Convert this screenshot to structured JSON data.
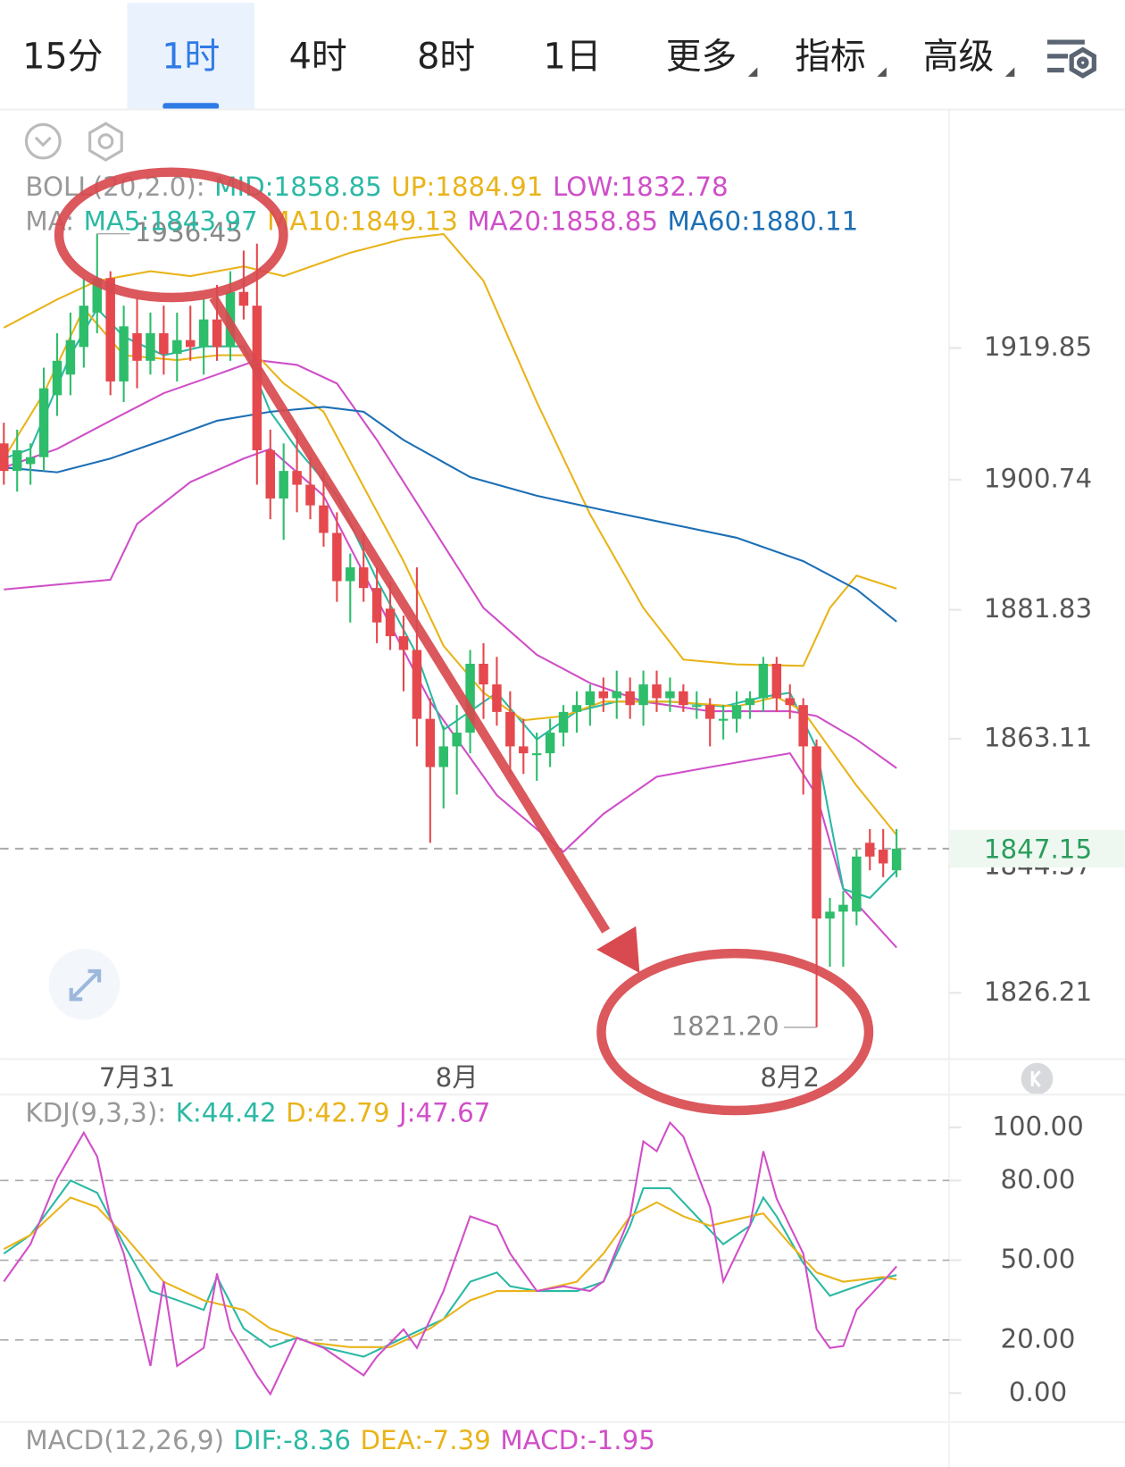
{
  "tabs": [
    "15分",
    "1时",
    "4时",
    "8时",
    "1日",
    "更多",
    "指标",
    "高级"
  ],
  "active_tab": 1,
  "chart_data": [
    {
      "type": "candlestick",
      "up_color": "#2ebd6b",
      "down_color": "#e5484d",
      "categories": [
        null,
        null,
        null,
        null,
        null,
        null,
        null,
        null,
        null,
        null,
        "7月31",
        null,
        null,
        null,
        null,
        null,
        null,
        null,
        null,
        null,
        null,
        null,
        null,
        null,
        null,
        null,
        null,
        null,
        null,
        null,
        null,
        null,
        null,
        null,
        "8月",
        null,
        null,
        null,
        null,
        null,
        null,
        null,
        null,
        null,
        null,
        null,
        null,
        null,
        null,
        null,
        null,
        null,
        null,
        null,
        null,
        null,
        null,
        null,
        null,
        "8月2",
        null,
        null,
        null,
        null,
        null,
        null,
        null,
        null
      ],
      "ohlc": [
        [
          1906,
          1909,
          1900,
          1902
        ],
        [
          1902,
          1908,
          1899,
          1905
        ],
        [
          1903,
          1906,
          1900,
          1904
        ],
        [
          1904,
          1917,
          1902,
          1914
        ],
        [
          1913,
          1922,
          1910,
          1918
        ],
        [
          1916,
          1925,
          1913,
          1921
        ],
        [
          1920,
          1930,
          1917,
          1926
        ],
        [
          1925,
          1936.45,
          1922,
          1930
        ],
        [
          1930,
          1931,
          1913,
          1915
        ],
        [
          1915,
          1926,
          1912,
          1923
        ],
        [
          1922,
          1927,
          1914,
          1918
        ],
        [
          1918,
          1925,
          1916,
          1922
        ],
        [
          1922,
          1926,
          1916,
          1919
        ],
        [
          1919,
          1925,
          1915,
          1921
        ],
        [
          1921,
          1926,
          1918,
          1920
        ],
        [
          1920,
          1927,
          1916,
          1924
        ],
        [
          1924,
          1929,
          1918,
          1920
        ],
        [
          1920,
          1931,
          1918,
          1928
        ],
        [
          1928,
          1934,
          1924,
          1926
        ],
        [
          1926,
          1935,
          1900,
          1905
        ],
        [
          1905,
          1908,
          1895,
          1898
        ],
        [
          1898,
          1906,
          1892,
          1902
        ],
        [
          1902,
          1908,
          1896,
          1900
        ],
        [
          1900,
          1904,
          1895,
          1897
        ],
        [
          1897,
          1902,
          1891,
          1893
        ],
        [
          1893,
          1896,
          1883,
          1886
        ],
        [
          1886,
          1890,
          1880,
          1888
        ],
        [
          1888,
          1893,
          1883,
          1885
        ],
        [
          1885,
          1888,
          1877,
          1880
        ],
        [
          1882,
          1886,
          1876,
          1878
        ],
        [
          1878,
          1881,
          1870,
          1876
        ],
        [
          1876,
          1888,
          1862,
          1866
        ],
        [
          1866,
          1869,
          1848,
          1859
        ],
        [
          1859,
          1865,
          1853,
          1862
        ],
        [
          1862,
          1868,
          1855,
          1864
        ],
        [
          1864,
          1876,
          1861,
          1874
        ],
        [
          1874,
          1877,
          1866,
          1871
        ],
        [
          1871,
          1875,
          1865,
          1867
        ],
        [
          1867,
          1870,
          1858,
          1862
        ],
        [
          1862,
          1866,
          1858,
          1861
        ],
        [
          1861,
          1864,
          1857,
          1861
        ],
        [
          1861,
          1866,
          1859,
          1864
        ],
        [
          1864,
          1868,
          1862,
          1867
        ],
        [
          1867,
          1870,
          1864,
          1868
        ],
        [
          1868,
          1871,
          1865,
          1870
        ],
        [
          1870,
          1872,
          1867,
          1869
        ],
        [
          1869,
          1873,
          1866,
          1870
        ],
        [
          1870,
          1872,
          1866,
          1868
        ],
        [
          1868,
          1873,
          1865,
          1871
        ],
        [
          1871,
          1873,
          1867,
          1869
        ],
        [
          1869,
          1872,
          1867,
          1870
        ],
        [
          1870,
          1871,
          1867,
          1868
        ],
        [
          1868,
          1870,
          1866,
          1868
        ],
        [
          1868,
          1869,
          1862,
          1866
        ],
        [
          1866,
          1868,
          1863,
          1866
        ],
        [
          1866,
          1870,
          1864,
          1868
        ],
        [
          1868,
          1870,
          1866,
          1869
        ],
        [
          1869,
          1875,
          1867,
          1874
        ],
        [
          1874,
          1875,
          1867,
          1869
        ],
        [
          1869,
          1871,
          1866,
          1868
        ],
        [
          1868,
          1869,
          1855,
          1862
        ],
        [
          1862,
          1863,
          1821.2,
          1837
        ],
        [
          1837,
          1840,
          1830,
          1838
        ],
        [
          1838,
          1841,
          1830,
          1839
        ],
        [
          1838,
          1847,
          1836,
          1846
        ],
        [
          1848,
          1850,
          1844,
          1846
        ],
        [
          1847,
          1850,
          1843,
          1845
        ],
        [
          1844,
          1850,
          1843,
          1847.15
        ]
      ],
      "boll": {
        "label": "BOLL(20,2.0):",
        "series": [
          {
            "name": "MID:1858.85",
            "color": "#2bb9a4",
            "line_color": "#cf4fc8",
            "x": [
              0,
              4,
              8,
              12,
              16,
              19,
              22,
              25,
              28,
              32,
              36,
              40,
              44,
              48,
              53,
              59,
              61,
              64,
              67
            ],
            "values": [
              1902.5,
              1905.2,
              1909.3,
              1913.3,
              1916.0,
              1918.1,
              1917.4,
              1914.7,
              1906.5,
              1894.3,
              1882.1,
              1875.3,
              1871.2,
              1868.5,
              1867.1,
              1867.1,
              1866.4,
              1863.0,
              1858.85
            ]
          },
          {
            "name": "UP:1884.91",
            "color": "#e9b41a",
            "x": [
              0,
              4,
              7,
              11,
              14,
              18,
              21,
              26,
              30,
              33,
              36,
              40,
              44,
              48,
              51,
              55,
              60,
              62,
              64,
              67
            ],
            "values": [
              1922.8,
              1926.9,
              1929.6,
              1931.0,
              1930.3,
              1931.7,
              1930.3,
              1933.7,
              1935.7,
              1936.4,
              1929.6,
              1912.0,
              1895.7,
              1882.1,
              1874.6,
              1873.9,
              1873.7,
              1882.1,
              1886.8,
              1884.91
            ]
          },
          {
            "name": "LOW:1832.78",
            "color": "#cf4fc8",
            "x": [
              0,
              8,
              10,
              14,
              18,
              20,
              24,
              28,
              32,
              37,
              42,
              45,
              49,
              53,
              59,
              61,
              63,
              67
            ],
            "values": [
              1884.8,
              1886.2,
              1894.3,
              1900.4,
              1903.8,
              1905.2,
              1898.4,
              1883.4,
              1868.5,
              1854.9,
              1846.7,
              1852.2,
              1857.6,
              1859.0,
              1861.0,
              1854.9,
              1841.3,
              1832.78
            ]
          }
        ]
      },
      "ma": {
        "label": "MA:",
        "series": [
          {
            "name": "MA5:1843.97",
            "color": "#2bb9a4",
            "x": [
              0,
              2,
              5,
              7,
              9,
              12,
              15,
              18,
              20,
              22,
              25,
              28,
              31,
              33,
              35,
              37,
              40,
              43,
              46,
              50,
              54,
              57,
              59,
              61,
              63,
              65,
              67
            ],
            "values": [
              1903.8,
              1905.2,
              1918.8,
              1925.6,
              1921.5,
              1918.8,
              1920.1,
              1920.1,
              1910.6,
              1905.2,
              1898.4,
              1886.2,
              1875.3,
              1864.4,
              1867.1,
              1869.8,
              1863.0,
              1867.1,
              1868.5,
              1868.5,
              1867.8,
              1869.2,
              1869.8,
              1861.7,
              1841.3,
              1840.0,
              1843.97
            ]
          },
          {
            "name": "MA10:1849.13",
            "color": "#e9b41a",
            "x": [
              0,
              3,
              6,
              9,
              13,
              16,
              19,
              21,
              24,
              27,
              30,
              33,
              36,
              39,
              42,
              45,
              50,
              55,
              58,
              60,
              62,
              64,
              67
            ],
            "values": [
              1903.8,
              1913.3,
              1925.6,
              1918.8,
              1918.1,
              1918.8,
              1918.8,
              1914.7,
              1910.6,
              1899.7,
              1888.9,
              1876.6,
              1869.8,
              1865.8,
              1866.4,
              1868.5,
              1868.5,
              1867.8,
              1869.2,
              1867.1,
              1861.7,
              1856.3,
              1849.13
            ]
          },
          {
            "name": "MA20:1858.85",
            "color": "#cf4fc8",
            "x": [],
            "values": []
          },
          {
            "name": "MA60:1880.11",
            "color": "#1d6fb5",
            "x": [
              0,
              4,
              8,
              12,
              16,
              20,
              24,
              27,
              30,
              35,
              40,
              45,
              50,
              55,
              60,
              64,
              67
            ],
            "values": [
              1902.5,
              1901.8,
              1903.8,
              1906.5,
              1909.3,
              1910.6,
              1911.3,
              1910.6,
              1906.5,
              1901.1,
              1898.4,
              1896.3,
              1894.3,
              1892.3,
              1888.9,
              1884.8,
              1880.11
            ]
          }
        ]
      },
      "ylim": [
        1816.86,
        1954.09
      ],
      "yticks": [
        1919.85,
        1900.74,
        1881.83,
        1863.11,
        1844.57,
        1826.21
      ],
      "price_marks": [
        {
          "index": 7,
          "value": 1936.45,
          "label": "1936.45"
        },
        {
          "index": 61,
          "value": 1821.2,
          "label": "1821.20"
        }
      ],
      "last_price": {
        "value": 1847.15,
        "label": "1847.15"
      }
    },
    {
      "type": "line",
      "label": "KDJ(9,3,3):",
      "series": [
        {
          "name": "K:44.42",
          "color": "#2bb9a4",
          "x": [
            0,
            2,
            5,
            7,
            9,
            11,
            13,
            15,
            16,
            18,
            20,
            22,
            24,
            27,
            30,
            33,
            35,
            37,
            38,
            40,
            43,
            45,
            47,
            48,
            50,
            52,
            54,
            56,
            57,
            58,
            60,
            62,
            63,
            65,
            67
          ],
          "values": [
            52.5,
            59.5,
            80,
            75.4,
            56,
            38.4,
            35,
            31.3,
            43.7,
            24.3,
            17.3,
            20.8,
            17.3,
            13.7,
            20.8,
            27.8,
            41.9,
            45.4,
            40.2,
            38.4,
            38.4,
            41.9,
            63,
            77.1,
            77.1,
            66.5,
            56,
            63,
            73.6,
            66.5,
            48.9,
            36.6,
            38.4,
            41.9,
            44.42
          ]
        },
        {
          "name": "D:42.79",
          "color": "#e9b41a",
          "x": [
            0,
            2,
            5,
            7,
            9,
            12,
            15,
            18,
            20,
            23,
            26,
            29,
            32,
            35,
            37,
            40,
            43,
            45,
            47,
            49,
            51,
            53,
            56,
            57,
            59,
            61,
            63,
            66,
            67
          ],
          "values": [
            54.2,
            59.5,
            73.6,
            70,
            59.5,
            41.9,
            34.9,
            31.3,
            24.3,
            19,
            17.3,
            17.3,
            24.3,
            34.9,
            38.4,
            38.4,
            41.9,
            52.5,
            66.5,
            71.8,
            66.5,
            63,
            66.5,
            67.6,
            56,
            45.4,
            41.9,
            43.7,
            42.79
          ]
        },
        {
          "name": "J:47.67",
          "color": "#d14fc8",
          "x": [
            0,
            2,
            4,
            6,
            7,
            8,
            9,
            11,
            12,
            13,
            15,
            16,
            17,
            19,
            20,
            22,
            24,
            27,
            28,
            30,
            31,
            33,
            35,
            37,
            38,
            40,
            42,
            44,
            45,
            47,
            48,
            49,
            50,
            51,
            53,
            54,
            56,
            57,
            58,
            60,
            61,
            62,
            63,
            64,
            66,
            67
          ],
          "values": [
            42,
            56,
            80.6,
            98,
            89,
            66,
            52.5,
            10.2,
            42,
            10.2,
            17,
            45,
            24,
            6.7,
            -0.4,
            20.8,
            17,
            6.7,
            13.7,
            24,
            17,
            38.4,
            66.5,
            63,
            52.5,
            38.4,
            40.2,
            38.4,
            42,
            66.5,
            94.7,
            91,
            101.8,
            96.5,
            70,
            42,
            63,
            91,
            73.2,
            52.5,
            24,
            17,
            17.7,
            31.3,
            42,
            47.67
          ]
        }
      ],
      "ylim": [
        -10.92,
        112.32
      ],
      "yticks": [
        {
          "value": 100,
          "label": "100.00"
        },
        {
          "value": 80,
          "label": "80.00"
        },
        {
          "value": 50,
          "label": "50.00"
        },
        {
          "value": 20,
          "label": "20.00"
        },
        {
          "value": 0,
          "label": "0.00"
        }
      ],
      "dashed": [
        80,
        50,
        20
      ]
    }
  ],
  "macd_legend": {
    "label": "MACD(12,26,9)",
    "items": [
      {
        "text": "DIF:-8.36",
        "color": "#2bb9a4"
      },
      {
        "text": "DEA:-7.39",
        "color": "#e9b41a"
      },
      {
        "text": "MACD:-1.95",
        "color": "#d14fc8"
      }
    ]
  }
}
